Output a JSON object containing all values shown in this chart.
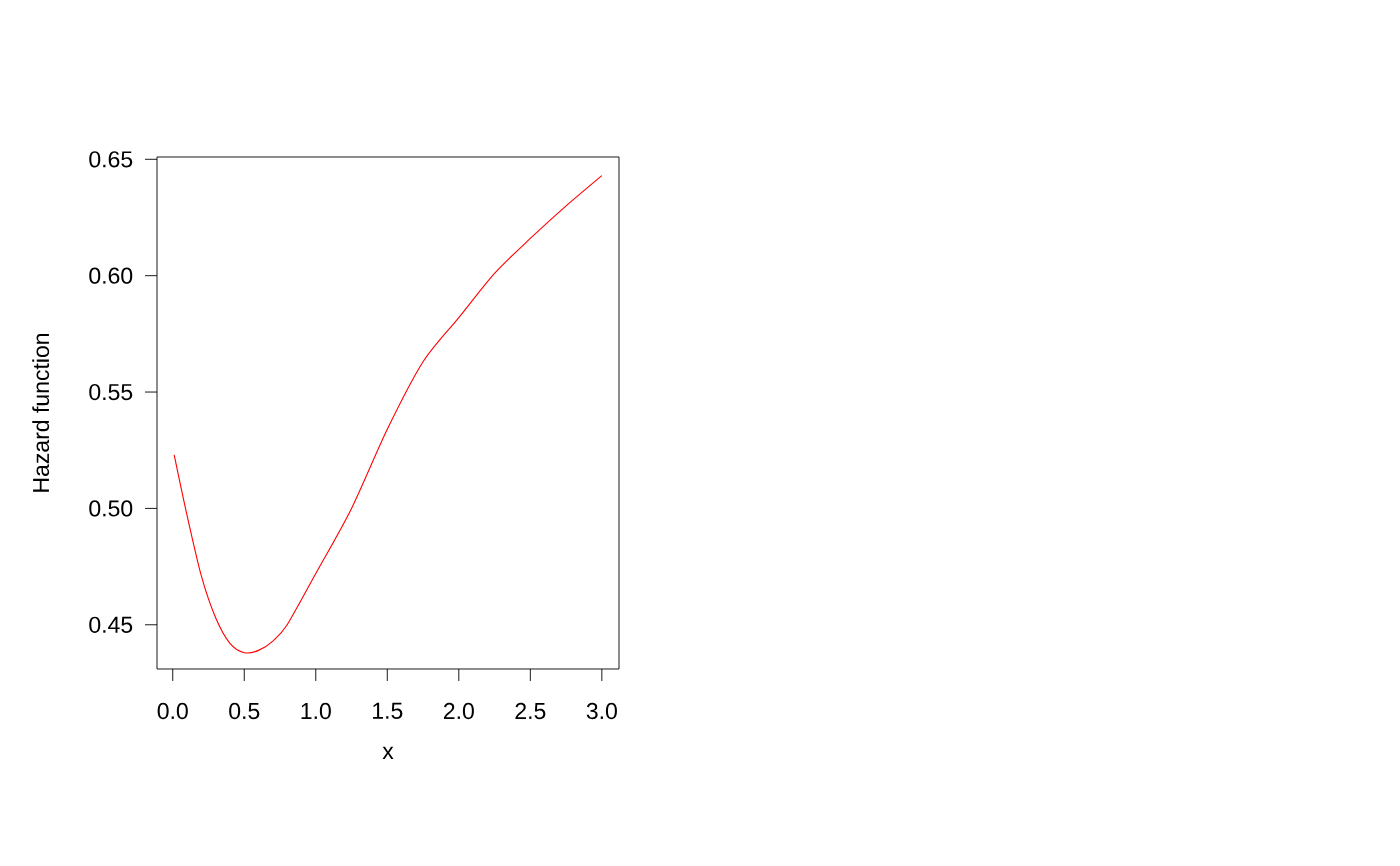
{
  "chart_data": {
    "type": "line",
    "xlabel": "x",
    "ylabel": "Hazard function",
    "x": [
      0.01,
      0.1,
      0.2,
      0.3,
      0.4,
      0.5,
      0.6,
      0.7,
      0.8,
      1.0,
      1.25,
      1.5,
      1.75,
      2.0,
      2.25,
      2.5,
      2.75,
      3.0
    ],
    "series": [
      {
        "color": "#ff0000",
        "values": [
          0.523,
          0.497,
          0.471,
          0.453,
          0.442,
          0.438,
          0.439,
          0.443,
          0.45,
          0.472,
          0.5,
          0.534,
          0.563,
          0.582,
          0.601,
          0.616,
          0.63,
          0.643
        ]
      }
    ],
    "xlim": [
      -0.11,
      3.12
    ],
    "ylim": [
      0.431,
      0.651
    ],
    "xticks": [
      {
        "value": 0,
        "label": "0.0"
      },
      {
        "value": 0.5,
        "label": "0.5"
      },
      {
        "value": 1,
        "label": "1.0"
      },
      {
        "value": 1.5,
        "label": "1.5"
      },
      {
        "value": 2,
        "label": "2.0"
      },
      {
        "value": 2.5,
        "label": "2.5"
      },
      {
        "value": 3,
        "label": "3.0"
      }
    ],
    "yticks": [
      0.45,
      {
        "value": 0.5,
        "label": "0.50"
      },
      0.55,
      {
        "value": 0.6,
        "label": "0.60"
      },
      0.65
    ],
    "marker": "none",
    "line_style": "solid"
  }
}
